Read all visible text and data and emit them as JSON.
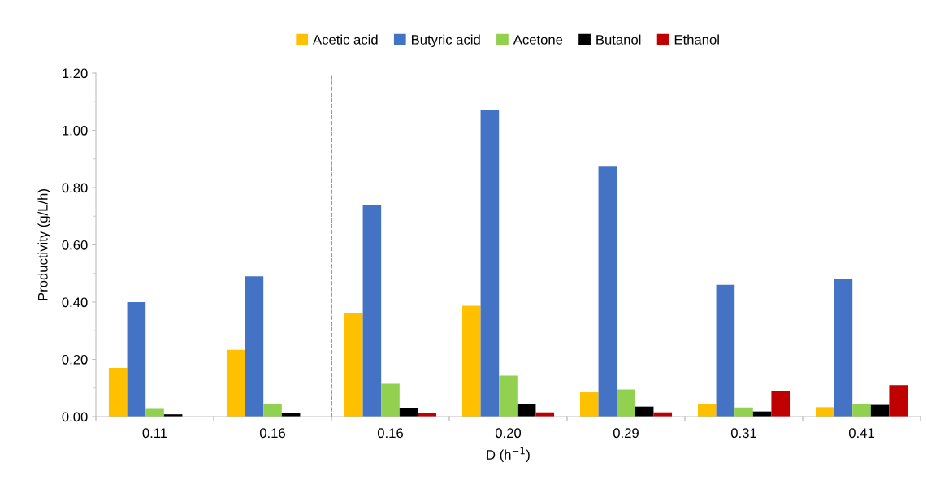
{
  "chart_data": {
    "type": "bar",
    "xlabel": "D (h$^{−1}$)",
    "ylabel": "Productivity (g/L/h)",
    "categories": [
      "0.11",
      "0.16",
      "0.16",
      "0.20",
      "0.29",
      "0.31",
      "0.41"
    ],
    "series": [
      {
        "name": "Acetic acid",
        "color": "#ffc000",
        "values": [
          0.17,
          0.233,
          0.36,
          0.387,
          0.085,
          0.044,
          0.033
        ]
      },
      {
        "name": "Butyric acid",
        "color": "#4472c4",
        "values": [
          0.4,
          0.49,
          0.74,
          1.07,
          0.873,
          0.46,
          0.48
        ]
      },
      {
        "name": "Acetone",
        "color": "#92d050",
        "values": [
          0.027,
          0.045,
          0.115,
          0.143,
          0.095,
          0.032,
          0.044
        ]
      },
      {
        "name": "Butanol",
        "color": "#000000",
        "values": [
          0.008,
          0.013,
          0.03,
          0.044,
          0.035,
          0.018,
          0.041
        ]
      },
      {
        "name": "Ethanol",
        "color": "#c00000",
        "values": [
          0,
          0,
          0.013,
          0.015,
          0.015,
          0.09,
          0.11
        ]
      }
    ],
    "ylim": [
      0,
      1.2
    ],
    "yticks": [
      {
        "value": 0,
        "label": "0.00"
      },
      {
        "value": 0.2,
        "label": "0.20"
      },
      {
        "value": 0.4,
        "label": "0.40"
      },
      {
        "value": 0.6,
        "label": "0.60"
      },
      {
        "value": 0.8,
        "label": "0.80"
      },
      {
        "value": 1.0,
        "label": "1.00"
      },
      {
        "value": 1.2,
        "label": "1.20"
      }
    ],
    "grid": false,
    "legend": "top"
  }
}
